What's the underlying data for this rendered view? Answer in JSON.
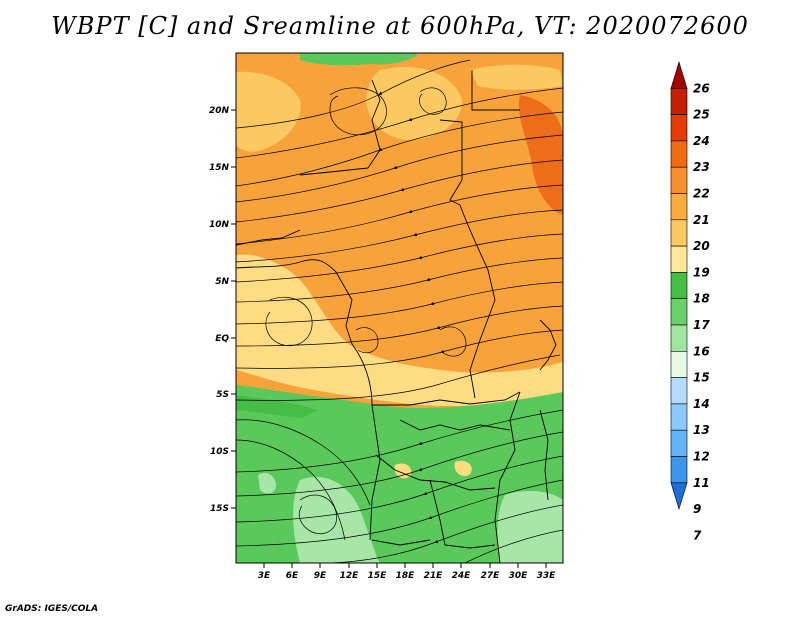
{
  "title": "WBPT [C] and Sreamline at 600hPa, VT: 2020072600",
  "footer": "GrADS: IGES/COLA",
  "map": {
    "lat_labels": [
      "20N",
      "15N",
      "10N",
      "5N",
      "EQ",
      "5S",
      "10S",
      "15S"
    ],
    "lon_labels": [
      "3E",
      "6E",
      "9E",
      "12E",
      "15E",
      "18E",
      "21E",
      "24E",
      "27E",
      "30E",
      "33E"
    ]
  },
  "colorbar": {
    "labels": [
      "26",
      "25",
      "24",
      "23",
      "22",
      "21",
      "20",
      "19",
      "18",
      "17",
      "16",
      "15",
      "14",
      "13",
      "12",
      "11",
      "9",
      "7"
    ],
    "colors": [
      "#a50000",
      "#c81e00",
      "#e63c00",
      "#f06a12",
      "#f7902a",
      "#faac3c",
      "#fcc862",
      "#fde79a",
      "#46be46",
      "#6ad06a",
      "#a0e6a0",
      "#e6fae6",
      "#b4dcff",
      "#8cc8ff",
      "#64b4f5",
      "#3c96eb",
      "#1e6ed7"
    ]
  },
  "colors": {
    "orange": "#f7a23a",
    "yellow": "#fddc84",
    "green": "#5ac85a",
    "lightgreen": "#a8e6a8"
  }
}
